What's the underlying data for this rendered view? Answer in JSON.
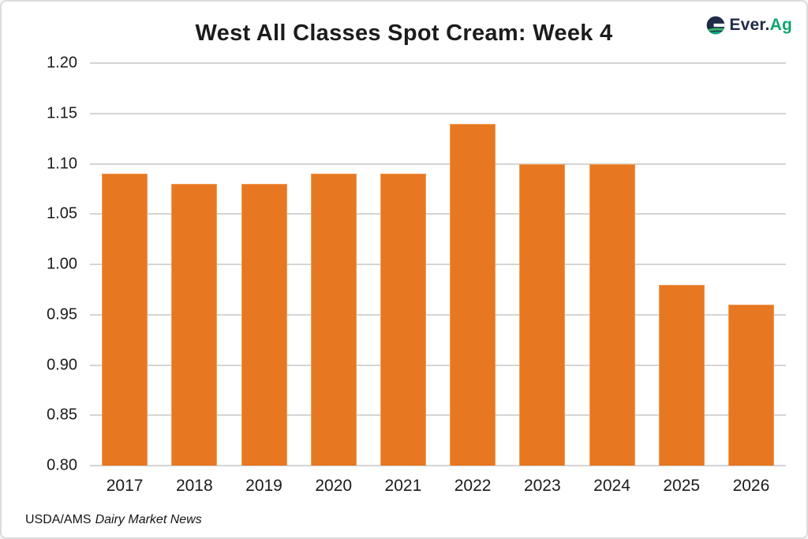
{
  "header": {
    "title": "West All Classes Spot Cream: Week 4"
  },
  "logo": {
    "text_primary": "Ever.",
    "text_secondary": "Ag",
    "navy_color": "#1f2b47",
    "green_color": "#0fa66e"
  },
  "chart_data": {
    "type": "bar",
    "title": "West All Classes Spot Cream: Week 4",
    "categories": [
      "2017",
      "2018",
      "2019",
      "2020",
      "2021",
      "2022",
      "2023",
      "2024",
      "2025",
      "2026"
    ],
    "values": [
      1.09,
      1.08,
      1.08,
      1.09,
      1.09,
      1.14,
      1.1,
      1.1,
      0.98,
      0.96
    ],
    "xlabel": "",
    "ylabel": "",
    "ylim": [
      0.8,
      1.2
    ],
    "yticks": [
      "1.20",
      "1.15",
      "1.10",
      "1.05",
      "1.00",
      "0.95",
      "0.90",
      "0.85",
      "0.80"
    ],
    "grid": true,
    "legend_position": "none",
    "bar_color": "#e87722",
    "bar_border_color": "#ef9c52",
    "grid_color": "#d5d5d5"
  },
  "footer": {
    "source_regular": "USDA/AMS",
    "source_italic": "Dairy Market News"
  }
}
